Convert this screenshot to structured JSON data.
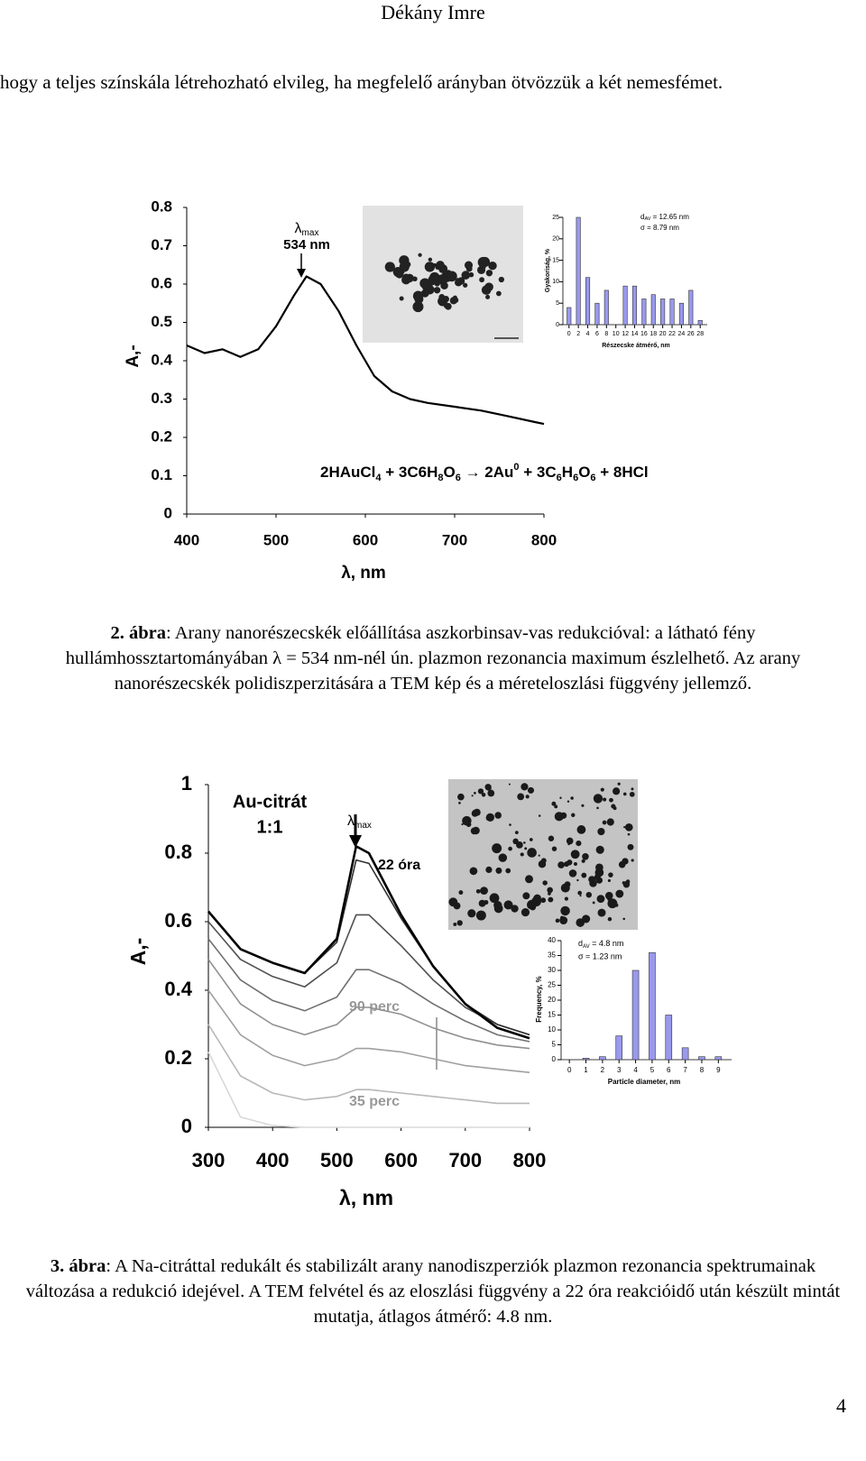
{
  "header": {
    "author": "Dékány Imre"
  },
  "paragraph": "hogy a teljes színskála létrehozható elvileg, ha megfelelő arányban ötvözzük a két nemesfémet.",
  "figures": [
    {
      "spectrum": {
        "type": "line",
        "x": [
          400,
          420,
          440,
          460,
          480,
          500,
          520,
          534,
          550,
          570,
          590,
          610,
          630,
          650,
          670,
          700,
          730,
          760,
          790,
          800
        ],
        "values": [
          0.44,
          0.42,
          0.43,
          0.41,
          0.43,
          0.49,
          0.57,
          0.62,
          0.6,
          0.53,
          0.44,
          0.36,
          0.32,
          0.3,
          0.29,
          0.28,
          0.27,
          0.255,
          0.24,
          0.235
        ],
        "color": "#000000",
        "xlim": [
          400,
          800
        ],
        "ylim": [
          0,
          0.8
        ],
        "xticks": [
          400,
          500,
          600,
          700,
          800
        ],
        "yticks": [
          0,
          0.1,
          0.2,
          0.3,
          0.4,
          0.5,
          0.6,
          0.7,
          0.8
        ],
        "ylabel": "A,-",
        "xlabel": "λ, nm"
      },
      "lambda": [
        "λ",
        "max"
      ],
      "peak": "534 nm",
      "equation": [
        "2HAuCl",
        "4",
        " + 3C6H",
        "8",
        "O",
        "6",
        " → 2Au",
        "0",
        " + 3C",
        "6",
        "H",
        "6",
        "O",
        "6",
        " + 8HCl"
      ],
      "histogram": {
        "type": "bar",
        "x": [
          0,
          2,
          4,
          6,
          8,
          10,
          12,
          14,
          16,
          18,
          20,
          22,
          24,
          26,
          28
        ],
        "values": [
          4,
          25,
          11,
          5,
          8,
          0,
          9,
          9,
          6,
          7,
          6,
          6,
          5,
          8,
          1
        ],
        "color": "#9999ee",
        "xlim": [
          -1.3,
          29.5
        ],
        "ylim": [
          0,
          25
        ],
        "xticks": [
          0,
          2,
          4,
          6,
          8,
          10,
          12,
          14,
          16,
          18,
          20,
          22,
          24,
          26,
          28
        ],
        "yticks": [
          0,
          5,
          10,
          15,
          20,
          25
        ],
        "ylabel": "Gyakoriság, %",
        "xlabel": "Részecske átmérő, nm",
        "d_av": [
          "d",
          "AV",
          " = 12.65 nm"
        ],
        "sigma": "σ = 8.79 nm"
      },
      "caption": {
        "label": "2. ábra",
        "text": ": Arany nanorészecskék előállítása aszkorbinsav-vas redukcióval: a látható fény hullámhossztartományában λ = 534 nm-nél ún. plazmon rezonancia maximum észlelhető. Az arany nanorészecskék polidiszperzitására a TEM kép és a méreteloszlási függvény jellemző."
      }
    },
    {
      "spectrum": {
        "type": "line",
        "x": [
          300,
          350,
          400,
          450,
          500,
          530,
          550,
          600,
          650,
          700,
          750,
          800
        ],
        "series": [
          {
            "color": "#d8d8d8",
            "values": [
              0.22,
              0.03,
              0.005,
              0,
              0,
              0,
              0,
              0,
              0,
              0,
              0,
              0
            ]
          },
          {
            "color": "#b8b8b8",
            "values": [
              0.3,
              0.15,
              0.1,
              0.08,
              0.09,
              0.11,
              0.11,
              0.1,
              0.09,
              0.08,
              0.07,
              0.07
            ]
          },
          {
            "color": "#a0a0a0",
            "values": [
              0.4,
              0.27,
              0.21,
              0.18,
              0.2,
              0.23,
              0.23,
              0.22,
              0.2,
              0.18,
              0.17,
              0.16
            ]
          },
          {
            "color": "#909090",
            "values": [
              0.49,
              0.36,
              0.3,
              0.27,
              0.3,
              0.35,
              0.35,
              0.33,
              0.29,
              0.26,
              0.24,
              0.23
            ]
          },
          {
            "color": "#707070",
            "values": [
              0.55,
              0.43,
              0.37,
              0.34,
              0.38,
              0.46,
              0.46,
              0.42,
              0.36,
              0.31,
              0.27,
              0.25
            ]
          },
          {
            "color": "#505050",
            "values": [
              0.6,
              0.49,
              0.44,
              0.41,
              0.48,
              0.62,
              0.62,
              0.53,
              0.43,
              0.35,
              0.3,
              0.27
            ]
          },
          {
            "color": "#303030",
            "values": [
              0.63,
              0.52,
              0.48,
              0.45,
              0.54,
              0.78,
              0.77,
              0.61,
              0.47,
              0.36,
              0.3,
              0.27
            ]
          },
          {
            "color": "#000000",
            "values": [
              0.63,
              0.52,
              0.48,
              0.45,
              0.55,
              0.82,
              0.8,
              0.62,
              0.47,
              0.36,
              0.29,
              0.26
            ]
          }
        ],
        "xlim": [
          300,
          800
        ],
        "ylim": [
          0,
          1
        ],
        "xticks": [
          300,
          400,
          500,
          600,
          700,
          800
        ],
        "yticks": [
          0,
          0.2,
          0.4,
          0.6,
          0.8,
          1
        ],
        "ylabel": "A,-",
        "xlabel": "λ, nm"
      },
      "title": [
        "Au-citrát",
        "1:1"
      ],
      "lambda": [
        "λ",
        "max"
      ],
      "labels": [
        "22 óra",
        "90 perc",
        "35 perc"
      ],
      "histogram": {
        "type": "bar",
        "x": [
          1,
          2,
          3,
          4,
          5,
          6,
          7,
          8,
          9
        ],
        "values": [
          0.5,
          1,
          8,
          30,
          36,
          15,
          4,
          1,
          1
        ],
        "color": "#9999ee",
        "xlim": [
          -0.5,
          9.8
        ],
        "ylim": [
          0,
          40
        ],
        "xticks": [
          0,
          1,
          2,
          3,
          4,
          5,
          6,
          7,
          8,
          9
        ],
        "yticks": [
          0,
          5,
          10,
          15,
          20,
          25,
          30,
          35,
          40
        ],
        "ylabel": "Frequency, %",
        "xlabel": "Particle diameter, nm",
        "d_av": [
          "d",
          "AV",
          " = 4.8 nm"
        ],
        "sigma": "σ = 1.23 nm"
      },
      "caption": {
        "label": "3. ábra",
        "text": ": A Na-citráttal redukált és stabilizált arany nanodiszperziók plazmon rezonancia spektrumainak változása a redukció idejével. A TEM felvétel és az eloszlási függvény a 22 óra reakcióidő után készült mintát mutatja, átlagos átmérő: 4.8 nm."
      }
    }
  ],
  "page_number": "4"
}
